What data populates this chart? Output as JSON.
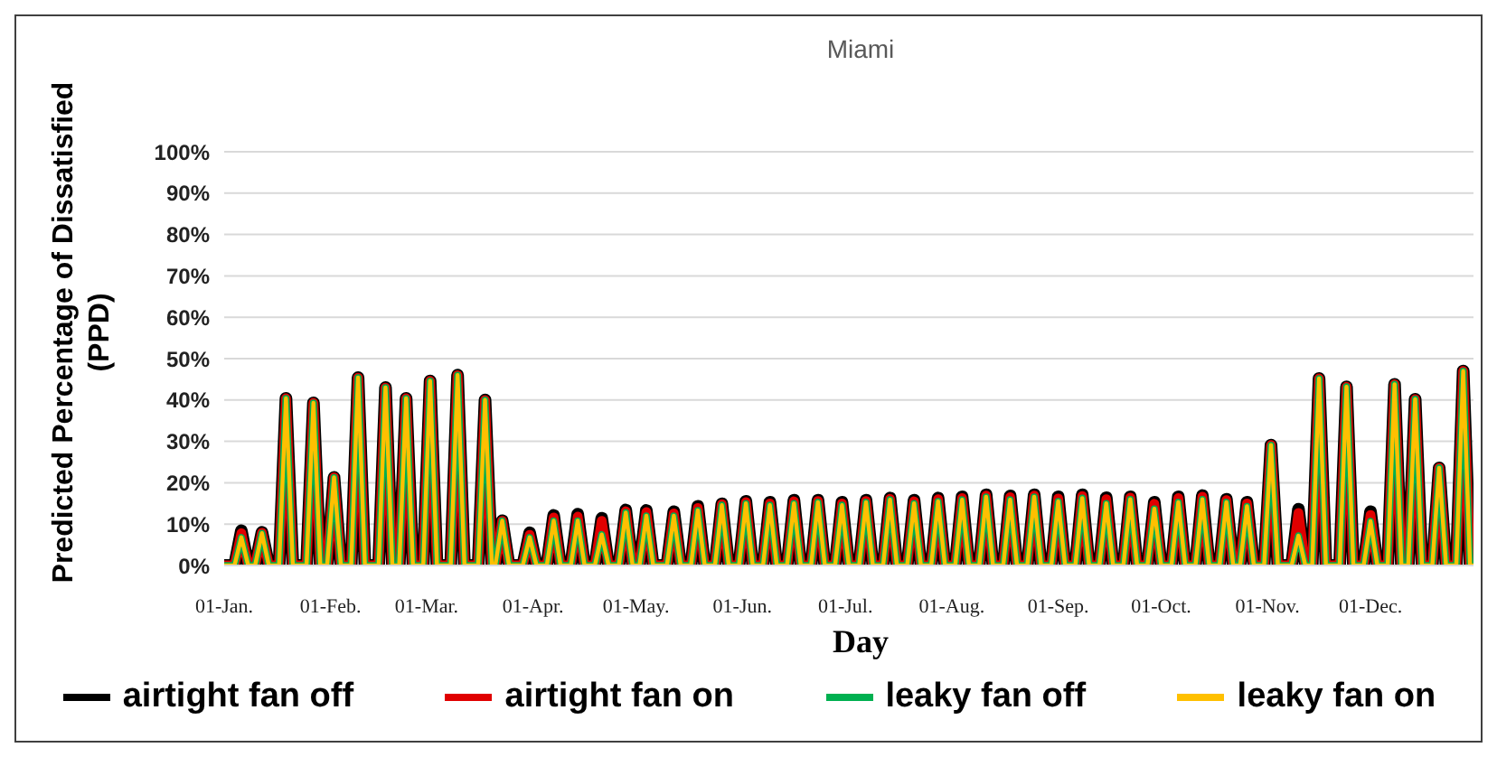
{
  "chart_data": {
    "type": "line",
    "title": "Miami",
    "xlabel": "Day",
    "ylabel": "Predicted Percentage of Dissatisfied (PPD)",
    "x": [
      "--01-01",
      "--01-04",
      "--01-06",
      "--01-08",
      "--01-10",
      "--01-12",
      "--01-14",
      "--01-17",
      "--01-19",
      "--01-21",
      "--01-25",
      "--01-27",
      "--01-29",
      "--01-31",
      "--02-02",
      "--02-04",
      "--02-07",
      "--02-09",
      "--02-11",
      "--02-15",
      "--02-17",
      "--02-19",
      "--02-21",
      "--02-23",
      "--02-25",
      "--02-28",
      "--03-02",
      "--03-04",
      "--03-08",
      "--03-10",
      "--03-12",
      "--03-16",
      "--03-18",
      "--03-20",
      "--03-21",
      "--03-23",
      "--03-25",
      "--03-29",
      "--03-31",
      "--04-02",
      "--04-05",
      "--04-07",
      "--04-09",
      "--04-12",
      "--04-14",
      "--04-16",
      "--04-19",
      "--04-21",
      "--04-23",
      "--04-26",
      "--04-28",
      "--04-30",
      "--05-02",
      "--05-04",
      "--05-06",
      "--05-10",
      "--05-12",
      "--05-14",
      "--05-17",
      "--05-19",
      "--05-21",
      "--05-24",
      "--05-26",
      "--05-28",
      "--05-31",
      "--06-02",
      "--06-04",
      "--06-07",
      "--06-09",
      "--06-11",
      "--06-14",
      "--06-16",
      "--06-18",
      "--06-21",
      "--06-23",
      "--06-25",
      "--06-28",
      "--06-30",
      "--07-02",
      "--07-05",
      "--07-07",
      "--07-09",
      "--07-12",
      "--07-14",
      "--07-16",
      "--07-19",
      "--07-21",
      "--07-23",
      "--07-26",
      "--07-28",
      "--07-30",
      "--08-02",
      "--08-04",
      "--08-06",
      "--08-09",
      "--08-11",
      "--08-13",
      "--08-16",
      "--08-18",
      "--08-20",
      "--08-23",
      "--08-25",
      "--08-27",
      "--08-30",
      "--09-01",
      "--09-03",
      "--09-06",
      "--09-08",
      "--09-10",
      "--09-13",
      "--09-15",
      "--09-17",
      "--09-20",
      "--09-22",
      "--09-24",
      "--09-27",
      "--09-29",
      "--10-01",
      "--10-04",
      "--10-06",
      "--10-08",
      "--10-11",
      "--10-13",
      "--10-15",
      "--10-18",
      "--10-20",
      "--10-22",
      "--10-24",
      "--10-26",
      "--10-28",
      "--10-31",
      "--11-02",
      "--11-04",
      "--11-08",
      "--11-10",
      "--11-12",
      "--11-14",
      "--11-16",
      "--11-18",
      "--11-22",
      "--11-24",
      "--11-26",
      "--11-29",
      "--12-01",
      "--12-03",
      "--12-06",
      "--12-08",
      "--12-10",
      "--12-12",
      "--12-14",
      "--12-16",
      "--12-19",
      "--12-21",
      "--12-23",
      "--12-26",
      "--12-28",
      "--12-30",
      "--12-31"
    ],
    "series": [
      {
        "name": "airtight fan off",
        "color": "#000000",
        "values": [
          0,
          0,
          8.4,
          0,
          0,
          8.0,
          0,
          0,
          40.4,
          0,
          0,
          39.3,
          0,
          0,
          21.3,
          0,
          0,
          45.4,
          0,
          0,
          43,
          0,
          0,
          40.4,
          0,
          0,
          44.6,
          0,
          0,
          46,
          0,
          0,
          40,
          0,
          0,
          10.8,
          0,
          0,
          7.9,
          0,
          0,
          12.1,
          0,
          0,
          12.4,
          0,
          0,
          11.4,
          0,
          0,
          13.4,
          0,
          0,
          13.3,
          0,
          0,
          13.0,
          0,
          0,
          14.3,
          0,
          0,
          14.9,
          0,
          0,
          15.5,
          0,
          0,
          15.3,
          0,
          0,
          15.8,
          0,
          0,
          15.8,
          0,
          0,
          15.3,
          0,
          0,
          15.8,
          0,
          0,
          16.3,
          0,
          0,
          15.8,
          0,
          0,
          16.3,
          0,
          0,
          16.6,
          0,
          0,
          17.1,
          0,
          0,
          16.8,
          0,
          0,
          17.1,
          0,
          0,
          16.6,
          0,
          0,
          17.1,
          0,
          0,
          16.4,
          0,
          0,
          16.6,
          0,
          0,
          15.3,
          0,
          0,
          16.6,
          0,
          0,
          16.9,
          0,
          0,
          16.0,
          0,
          0,
          15.3,
          0,
          0,
          29.1,
          0,
          0,
          13.6,
          0,
          0,
          45.2,
          0,
          0,
          43.2,
          0,
          0,
          13.0,
          0,
          0,
          43.8,
          0,
          0,
          40.2,
          0,
          0,
          23.6,
          0,
          0,
          47,
          0,
          0
        ]
      },
      {
        "name": "airtight fan on",
        "color": "#e00000",
        "values": [
          0,
          0,
          7.8,
          0,
          0,
          7.9,
          0,
          0,
          40.4,
          0,
          0,
          39.3,
          0,
          0,
          21.3,
          0,
          0,
          45.4,
          0,
          0,
          43,
          0,
          0,
          40.4,
          0,
          0,
          44.6,
          0,
          0,
          46,
          0,
          0,
          40,
          0,
          0,
          10.8,
          0,
          0,
          7.4,
          0,
          0,
          11.6,
          0,
          0,
          11.8,
          0,
          0,
          10.8,
          0,
          0,
          13.1,
          0,
          0,
          12.9,
          0,
          0,
          12.6,
          0,
          0,
          13.9,
          0,
          0,
          14.8,
          0,
          0,
          15.3,
          0,
          0,
          15.0,
          0,
          0,
          15.5,
          0,
          0,
          15.6,
          0,
          0,
          15.0,
          0,
          0,
          15.6,
          0,
          0,
          16.1,
          0,
          0,
          15.5,
          0,
          0,
          16.0,
          0,
          0,
          16.3,
          0,
          0,
          16.9,
          0,
          0,
          16.5,
          0,
          0,
          16.9,
          0,
          0,
          16.2,
          0,
          0,
          16.8,
          0,
          0,
          16.0,
          0,
          0,
          16.4,
          0,
          0,
          14.9,
          0,
          0,
          16.3,
          0,
          0,
          16.6,
          0,
          0,
          15.8,
          0,
          0,
          15.0,
          0,
          0,
          29.1,
          0,
          0,
          12.7,
          0,
          0,
          45.2,
          0,
          0,
          43.2,
          0,
          0,
          12.2,
          0,
          0,
          43.8,
          0,
          0,
          40.2,
          0,
          0,
          23.6,
          0,
          0,
          47,
          0,
          0
        ]
      },
      {
        "name": "leaky fan off",
        "color": "#00b050",
        "values": [
          0,
          0,
          6.8,
          0,
          0,
          7.8,
          0,
          0,
          40.4,
          0,
          0,
          39.3,
          0,
          0,
          21.3,
          0,
          0,
          45.4,
          0,
          0,
          43,
          0,
          0,
          40.4,
          0,
          0,
          44.6,
          0,
          0,
          46,
          0,
          0,
          40,
          0,
          0,
          10.8,
          0,
          0,
          6.8,
          0,
          0,
          10.8,
          0,
          0,
          10.8,
          0,
          0,
          7.5,
          0,
          0,
          12.8,
          0,
          0,
          12,
          0,
          0,
          12,
          0,
          0,
          13.3,
          0,
          0,
          14.6,
          0,
          0,
          15,
          0,
          0,
          14.6,
          0,
          0,
          15,
          0,
          0,
          15.3,
          0,
          0,
          14.6,
          0,
          0,
          15.3,
          0,
          0,
          15.9,
          0,
          0,
          15,
          0,
          0,
          15.5,
          0,
          0,
          15.9,
          0,
          0,
          16.6,
          0,
          0,
          15.9,
          0,
          0,
          16.6,
          0,
          0,
          15.5,
          0,
          0,
          16.3,
          0,
          0,
          15,
          0,
          0,
          16,
          0,
          0,
          13.7,
          0,
          0,
          15.3,
          0,
          0,
          16,
          0,
          0,
          15.3,
          0,
          0,
          14.3,
          0,
          0,
          29.1,
          0,
          0,
          7.2,
          0,
          0,
          45.2,
          0,
          0,
          43.2,
          0,
          0,
          10.7,
          0,
          0,
          43.8,
          0,
          0,
          40.2,
          0,
          0,
          23.6,
          0,
          0,
          47,
          0,
          0
        ]
      },
      {
        "name": "leaky fan on",
        "color": "#ffc000",
        "values": [
          0,
          0,
          6.8,
          0,
          0,
          7.8,
          0,
          0,
          40.4,
          0,
          0,
          39.3,
          0,
          0,
          21.3,
          0,
          0,
          45.4,
          0,
          0,
          43,
          0,
          0,
          40.4,
          0,
          0,
          44.6,
          0,
          0,
          46,
          0,
          0,
          40,
          0,
          0,
          10.8,
          0,
          0,
          6.8,
          0,
          0,
          10.8,
          0,
          0,
          10.8,
          0,
          0,
          7.5,
          0,
          0,
          12.8,
          0,
          0,
          12,
          0,
          0,
          12,
          0,
          0,
          13.3,
          0,
          0,
          14.6,
          0,
          0,
          15,
          0,
          0,
          14.6,
          0,
          0,
          15,
          0,
          0,
          15.3,
          0,
          0,
          14.6,
          0,
          0,
          15.3,
          0,
          0,
          15.9,
          0,
          0,
          15,
          0,
          0,
          15.5,
          0,
          0,
          15.9,
          0,
          0,
          16.6,
          0,
          0,
          15.9,
          0,
          0,
          16.6,
          0,
          0,
          15.5,
          0,
          0,
          16.3,
          0,
          0,
          15,
          0,
          0,
          16,
          0,
          0,
          13.7,
          0,
          0,
          15.3,
          0,
          0,
          16,
          0,
          0,
          15.3,
          0,
          0,
          14.3,
          0,
          0,
          29.1,
          0,
          0,
          7.2,
          0,
          0,
          45.2,
          0,
          0,
          43.2,
          0,
          0,
          10.7,
          0,
          0,
          43.8,
          0,
          0,
          40.2,
          0,
          0,
          23.6,
          0,
          0,
          47,
          0,
          0
        ]
      }
    ],
    "xlim": [
      "--01-01",
      "--12-31"
    ],
    "xticks": [
      {
        "value": "--01-01",
        "label": "01-Jan."
      },
      {
        "value": "--02-01",
        "label": "01-Feb."
      },
      {
        "value": "--03-01",
        "label": "01-Mar."
      },
      {
        "value": "--04-01",
        "label": "01-Apr."
      },
      {
        "value": "--05-01",
        "label": "01-May."
      },
      {
        "value": "--06-01",
        "label": "01-Jun."
      },
      {
        "value": "--07-01",
        "label": "01-Jul."
      },
      {
        "value": "--08-01",
        "label": "01-Aug."
      },
      {
        "value": "--09-01",
        "label": "01-Sep."
      },
      {
        "value": "--10-01",
        "label": "01-Oct."
      },
      {
        "value": "--11-01",
        "label": "01-Nov."
      },
      {
        "value": "--12-01",
        "label": "01-Dec."
      }
    ],
    "ylim": [
      0,
      100
    ],
    "yticks": [
      {
        "value": 0,
        "label": "0%"
      },
      {
        "value": 10,
        "label": "10%"
      },
      {
        "value": 20,
        "label": "20%"
      },
      {
        "value": 30,
        "label": "30%"
      },
      {
        "value": 40,
        "label": "40%"
      },
      {
        "value": 50,
        "label": "50%"
      },
      {
        "value": 60,
        "label": "60%"
      },
      {
        "value": 70,
        "label": "70%"
      },
      {
        "value": 80,
        "label": "80%"
      },
      {
        "value": 90,
        "label": "90%"
      },
      {
        "value": 100,
        "label": "100%"
      }
    ],
    "grid": "y",
    "legend": "bottom",
    "marker": "none",
    "line_style": "solid"
  }
}
